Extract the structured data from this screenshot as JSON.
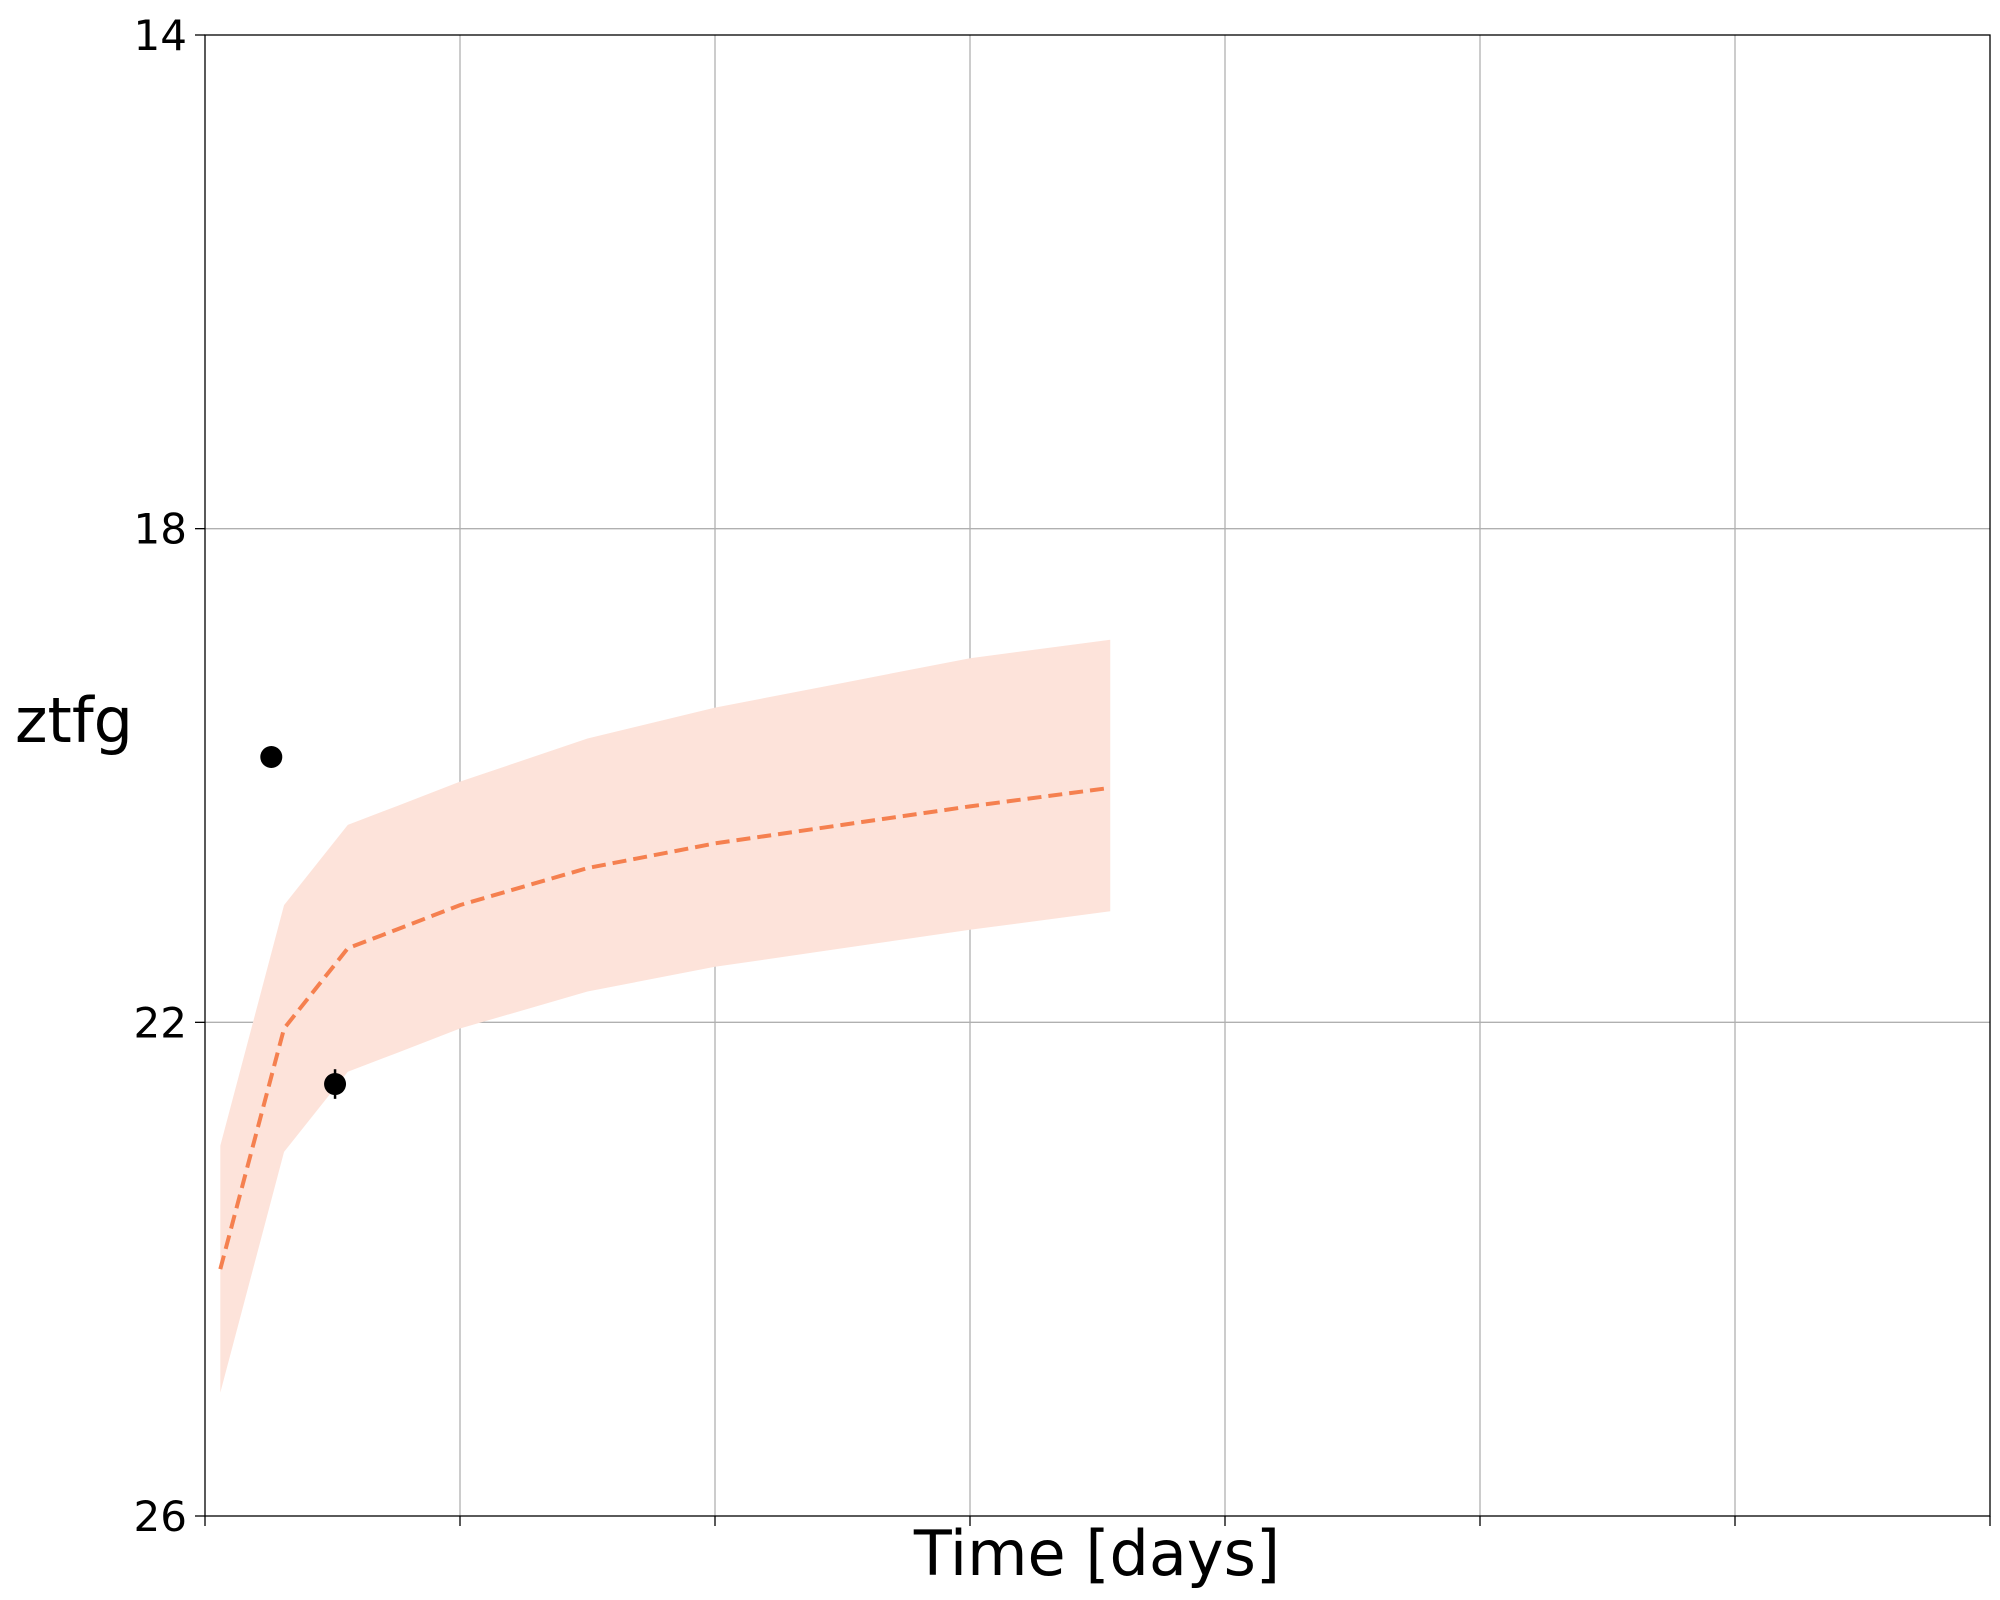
{
  "chart_data": {
    "type": "line",
    "title": "",
    "xlabel": "Time [days]",
    "ylabel": "ztfg",
    "ylim": [
      26,
      14
    ],
    "y_inverted": true,
    "yticks": [
      14,
      18,
      22,
      26
    ],
    "ytick_labels": [
      "14",
      "18",
      "22",
      "26"
    ],
    "xlim": [
      0,
      14
    ],
    "xticks": [
      0,
      2,
      4,
      6,
      8,
      10,
      12,
      14
    ],
    "xtick_labels_shown": false,
    "grid": true,
    "legend": "none",
    "colors": {
      "model_line": "#f5804f",
      "model_band": "#fde3da",
      "observations": "#000000"
    },
    "series": [
      {
        "kind": "model",
        "style": "dashed",
        "x": [
          0.12,
          0.62,
          1.12,
          1.5,
          2.0,
          3.0,
          4.0,
          5.0,
          6.0,
          7.1
        ],
        "y": [
          24.0,
          22.05,
          21.4,
          21.25,
          21.05,
          20.75,
          20.55,
          20.4,
          20.25,
          20.1
        ],
        "y_upper": [
          23.0,
          21.05,
          20.4,
          20.25,
          20.05,
          19.7,
          19.45,
          19.25,
          19.05,
          18.9
        ],
        "y_lower": [
          25.0,
          23.05,
          22.4,
          22.25,
          22.05,
          21.75,
          21.55,
          21.4,
          21.25,
          21.1
        ]
      },
      {
        "kind": "observations",
        "x": [
          0.52,
          1.02
        ],
        "y": [
          19.85,
          22.5
        ],
        "yerr": [
          0.05,
          0.12
        ]
      }
    ]
  }
}
